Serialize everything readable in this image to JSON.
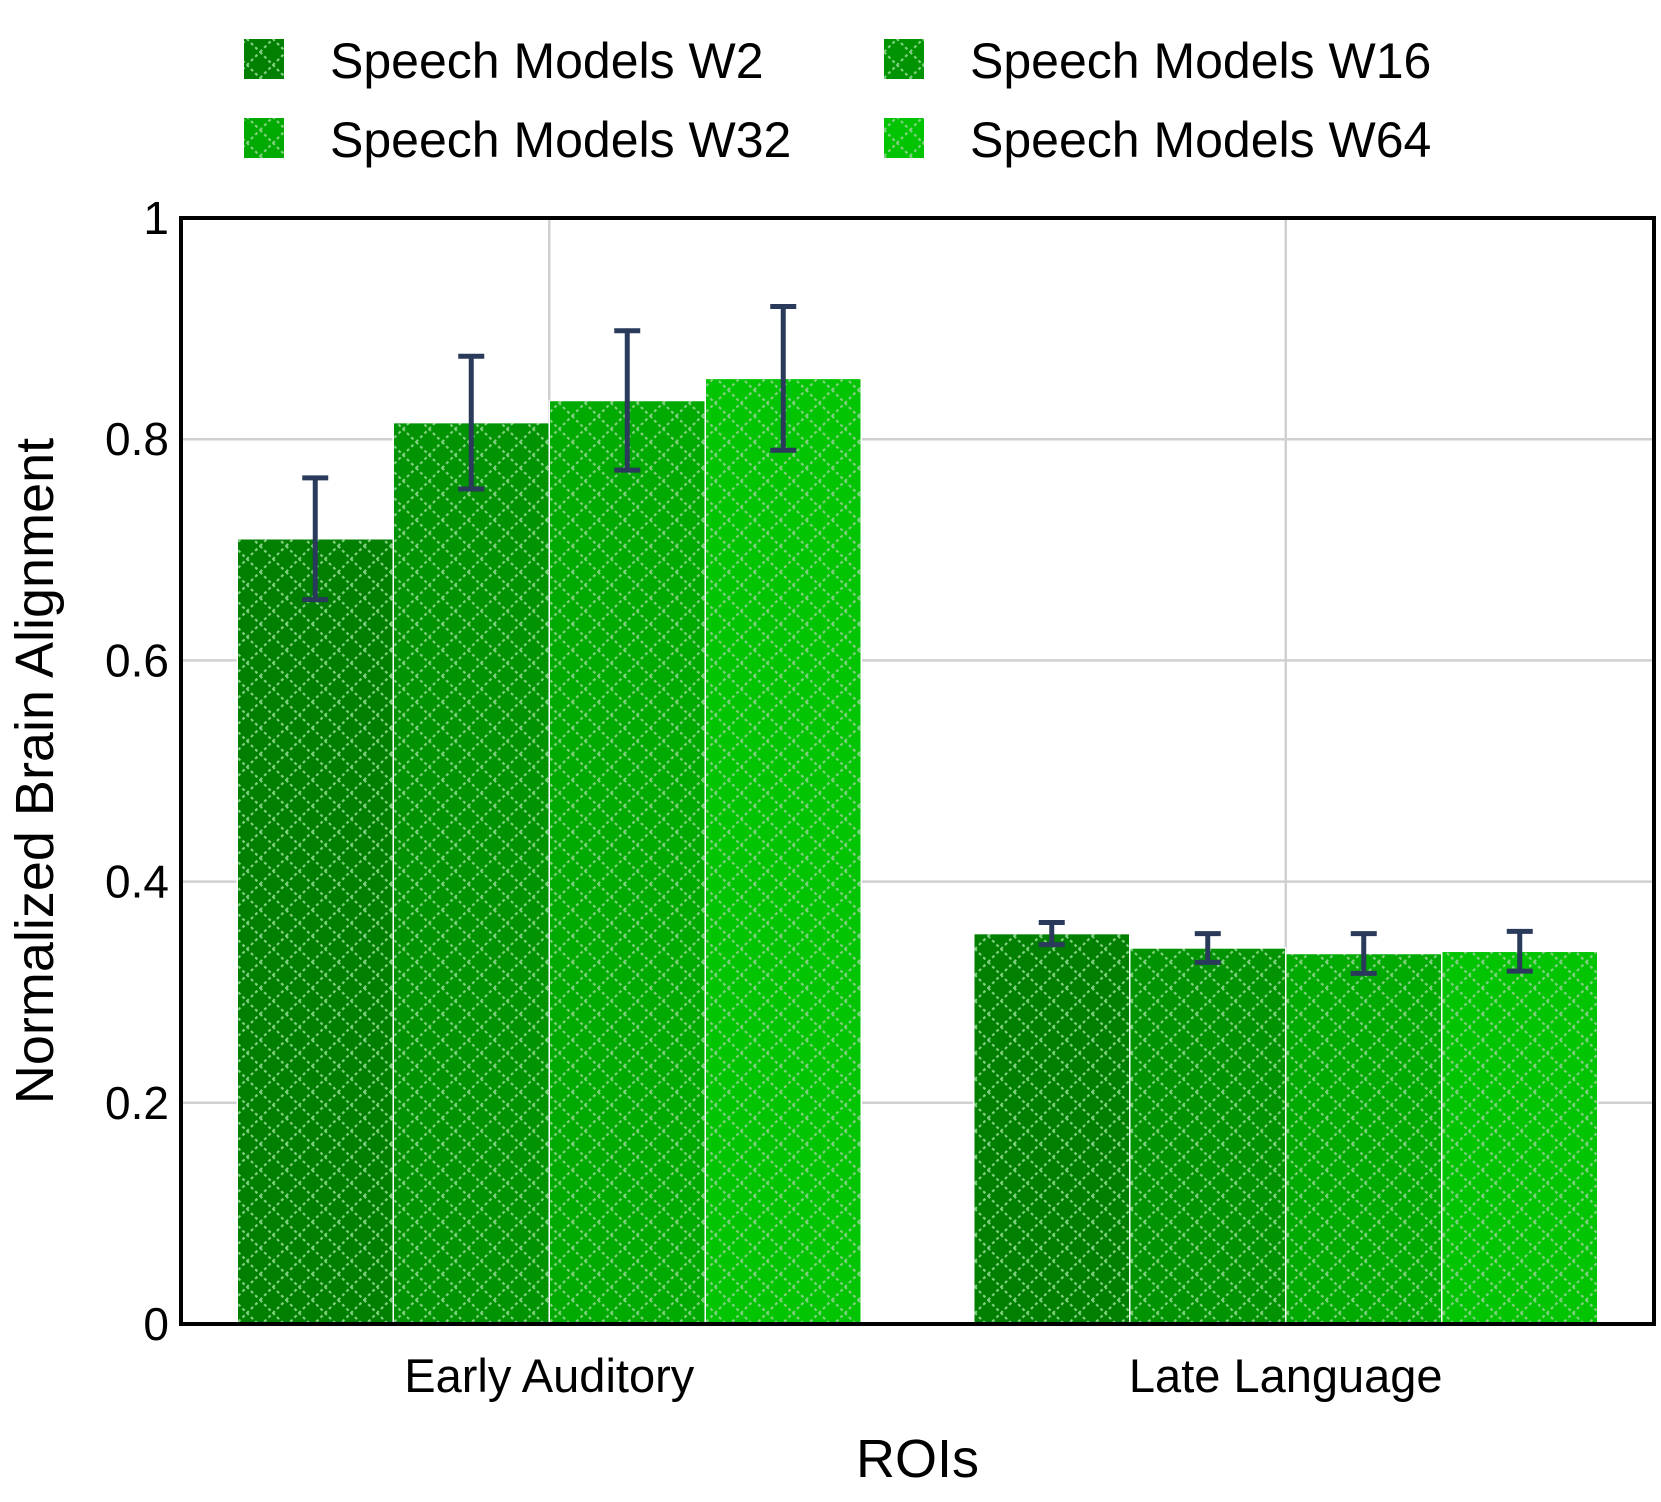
{
  "chart_data": {
    "type": "bar",
    "title": "",
    "xlabel": "ROIs",
    "ylabel": "Normalized Brain Alignment",
    "ylim": [
      0,
      1
    ],
    "yticks": [
      "0",
      "0.2",
      "0.4",
      "0.6",
      "0.8",
      "1"
    ],
    "ytick_values": [
      0,
      0.2,
      0.4,
      0.6,
      0.8,
      1.0
    ],
    "grid": true,
    "legend_position": "top",
    "categories": [
      "Early Auditory",
      "Late Language"
    ],
    "series": [
      {
        "name": "Speech Models W2",
        "color": "#017f01",
        "values": [
          0.71,
          0.353
        ],
        "errors": [
          0.055,
          0.01
        ]
      },
      {
        "name": "Speech Models W16",
        "color": "#019301",
        "values": [
          0.815,
          0.34
        ],
        "errors": [
          0.06,
          0.013
        ]
      },
      {
        "name": "Speech Models W32",
        "color": "#01aa01",
        "values": [
          0.835,
          0.335
        ],
        "errors": [
          0.063,
          0.018
        ]
      },
      {
        "name": "Speech Models W64",
        "color": "#02c402",
        "values": [
          0.855,
          0.337
        ],
        "errors": [
          0.065,
          0.018
        ]
      }
    ],
    "error_color": "#2a3a5a",
    "hatch_color": "#7fcf7f"
  }
}
